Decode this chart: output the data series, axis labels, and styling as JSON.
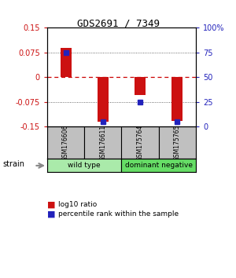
{
  "title": "GDS2691 / 7349",
  "samples": [
    "GSM176606",
    "GSM176611",
    "GSM175764",
    "GSM175765"
  ],
  "log10_ratio": [
    0.088,
    -0.135,
    -0.055,
    -0.133
  ],
  "percentile_pct": [
    75,
    5,
    25,
    5
  ],
  "groups": [
    {
      "label": "wild type",
      "samples": [
        0,
        1
      ],
      "color": "#aaeaaa"
    },
    {
      "label": "dominant negative",
      "samples": [
        2,
        3
      ],
      "color": "#66dd66"
    }
  ],
  "ylim": [
    -0.15,
    0.15
  ],
  "yticks_left": [
    -0.15,
    -0.075,
    0,
    0.075,
    0.15
  ],
  "ytick_left_labels": [
    "-0.15",
    "-0.075",
    "0",
    "0.075",
    "0.15"
  ],
  "yticks_right": [
    0,
    25,
    50,
    75,
    100
  ],
  "ytick_right_labels": [
    "0",
    "25",
    "50",
    "75",
    "100%"
  ],
  "bar_color": "#CC1111",
  "blue_color": "#2222BB",
  "zero_line_color": "#CC0000",
  "dot_line_color": "#444444",
  "left_tick_color": "#CC1111",
  "right_tick_color": "#2222BB",
  "sample_box_color": "#C0C0C0",
  "background_color": "#ffffff",
  "strain_label": "strain"
}
